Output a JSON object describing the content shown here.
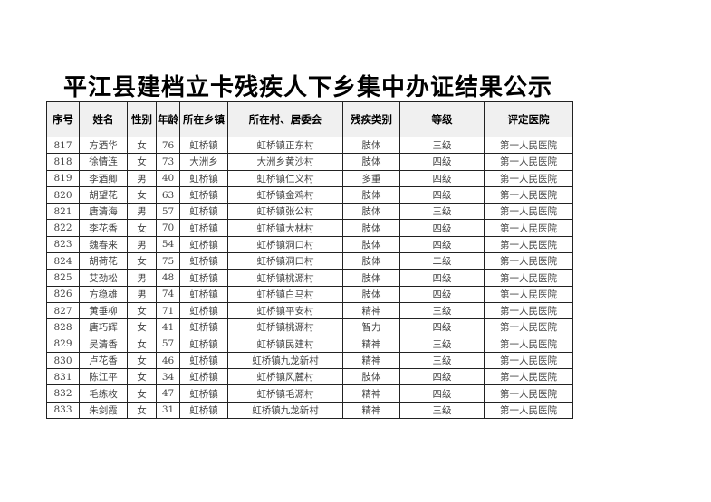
{
  "title": "平江县建档立卡残疾人下乡集中办证结果公示",
  "table": {
    "headers": [
      "序号",
      "姓名",
      "性别",
      "年龄",
      "所在乡镇",
      "所在村、居委会",
      "残疾类别",
      "等级",
      "评定医院"
    ],
    "rows": [
      [
        "817",
        "方酒华",
        "女",
        "76",
        "虹桥镇",
        "虹桥镇正东村",
        "肢体",
        "三级",
        "第一人民医院"
      ],
      [
        "818",
        "徐情连",
        "女",
        "73",
        "大洲乡",
        "大洲乡黄沙村",
        "肢体",
        "四级",
        "第一人民医院"
      ],
      [
        "819",
        "李酒卿",
        "男",
        "40",
        "虹桥镇",
        "虹桥镇仁义村",
        "多重",
        "四级",
        "第一人民医院"
      ],
      [
        "820",
        "胡望花",
        "女",
        "63",
        "虹桥镇",
        "虹桥镇金鸡村",
        "肢体",
        "四级",
        "第一人民医院"
      ],
      [
        "821",
        "唐清海",
        "男",
        "57",
        "虹桥镇",
        "虹桥镇张公村",
        "肢体",
        "三级",
        "第一人民医院"
      ],
      [
        "822",
        "李花香",
        "女",
        "70",
        "虹桥镇",
        "虹桥镇大林村",
        "肢体",
        "四级",
        "第一人民医院"
      ],
      [
        "823",
        "魏春来",
        "男",
        "54",
        "虹桥镇",
        "虹桥镇洞口村",
        "肢体",
        "四级",
        "第一人民医院"
      ],
      [
        "824",
        "胡荷花",
        "女",
        "75",
        "虹桥镇",
        "虹桥镇洞口村",
        "肢体",
        "二级",
        "第一人民医院"
      ],
      [
        "825",
        "艾劲松",
        "男",
        "48",
        "虹桥镇",
        "虹桥镇桃源村",
        "肢体",
        "四级",
        "第一人民医院"
      ],
      [
        "826",
        "方稳雄",
        "男",
        "74",
        "虹桥镇",
        "虹桥镇白马村",
        "肢体",
        "四级",
        "第一人民医院"
      ],
      [
        "827",
        "黄垂柳",
        "女",
        "71",
        "虹桥镇",
        "虹桥镇平安村",
        "精神",
        "三级",
        "第一人民医院"
      ],
      [
        "828",
        "唐巧辉",
        "女",
        "41",
        "虹桥镇",
        "虹桥镇桃源村",
        "智力",
        "四级",
        "第一人民医院"
      ],
      [
        "829",
        "吴清香",
        "女",
        "57",
        "虹桥镇",
        "虹桥镇民建村",
        "精神",
        "三级",
        "第一人民医院"
      ],
      [
        "830",
        "卢花香",
        "女",
        "46",
        "虹桥镇",
        "虹桥镇九龙新村",
        "精神",
        "三级",
        "第一人民医院"
      ],
      [
        "831",
        "陈江平",
        "女",
        "34",
        "虹桥镇",
        "虹桥镇风麓村",
        "肢体",
        "四级",
        "第一人民医院"
      ],
      [
        "832",
        "毛练枚",
        "女",
        "47",
        "虹桥镇",
        "虹桥镇毛源村",
        "精神",
        "四级",
        "第一人民医院"
      ],
      [
        "833",
        "朱剑霞",
        "女",
        "31",
        "虹桥镇",
        "虹桥镇九龙新村",
        "精神",
        "三级",
        "第一人民医院"
      ]
    ]
  }
}
